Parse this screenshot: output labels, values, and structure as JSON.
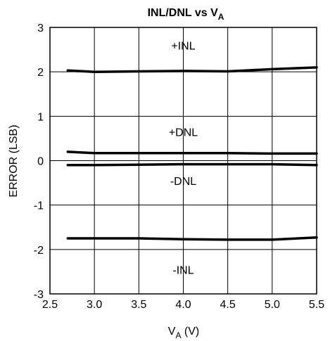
{
  "chart_data": {
    "type": "line",
    "title": "INL/DNL vs V",
    "title_subscript": "A",
    "xlabel": "V",
    "xlabel_subscript": "A",
    "xlabel_suffix": " (V)",
    "ylabel": "ERROR (LSB)",
    "xlim": [
      2.5,
      5.5
    ],
    "ylim": [
      -3,
      3
    ],
    "grid": true,
    "x_ticks": [
      "2.5",
      "3.0",
      "3.5",
      "4.0",
      "4.5",
      "5.0",
      "5.5"
    ],
    "y_ticks": [
      "3",
      "2",
      "1",
      "0",
      "-1",
      "-2",
      "-3"
    ],
    "series": [
      {
        "name": "+INL",
        "x": [
          2.7,
          3.0,
          3.5,
          4.0,
          4.5,
          5.0,
          5.5
        ],
        "y": [
          2.03,
          2.0,
          2.01,
          2.02,
          2.01,
          2.06,
          2.1
        ]
      },
      {
        "name": "+DNL",
        "x": [
          2.7,
          3.0,
          3.5,
          4.0,
          4.5,
          5.0,
          5.5
        ],
        "y": [
          0.2,
          0.17,
          0.17,
          0.17,
          0.17,
          0.16,
          0.16
        ]
      },
      {
        "name": "-DNL",
        "x": [
          2.7,
          3.0,
          3.5,
          4.0,
          4.5,
          5.0,
          5.5
        ],
        "y": [
          -0.1,
          -0.1,
          -0.09,
          -0.08,
          -0.08,
          -0.08,
          -0.1
        ]
      },
      {
        "name": "-INL",
        "x": [
          2.7,
          3.0,
          3.5,
          4.0,
          4.5,
          5.0,
          5.5
        ],
        "y": [
          -1.75,
          -1.75,
          -1.75,
          -1.77,
          -1.78,
          -1.78,
          -1.73
        ]
      }
    ],
    "series_labels": [
      {
        "text": "+INL",
        "x": 4.0,
        "y": 2.6
      },
      {
        "text": "+DNL",
        "x": 4.0,
        "y": 0.65
      },
      {
        "text": "-DNL",
        "x": 4.0,
        "y": -0.45
      },
      {
        "text": "-INL",
        "x": 4.0,
        "y": -2.45
      }
    ]
  }
}
